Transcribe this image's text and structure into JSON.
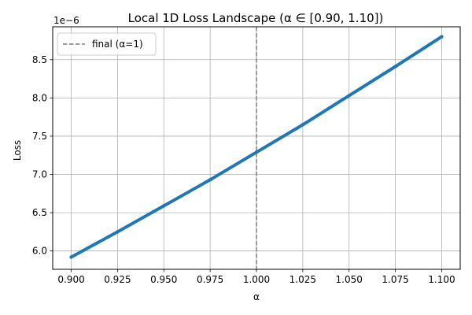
{
  "chart_data": {
    "type": "line",
    "title": "Local 1D Loss Landscape (α ∈ [0.90, 1.10])",
    "xlabel": "α",
    "ylabel": "Loss",
    "offset_label": "1e−6",
    "xlim": [
      0.89,
      1.11
    ],
    "ylim": [
      5.76,
      8.93
    ],
    "x_ticks": [
      0.9,
      0.925,
      0.95,
      0.975,
      1.0,
      1.025,
      1.05,
      1.075,
      1.1
    ],
    "x_tick_labels": [
      "0.900",
      "0.925",
      "0.950",
      "0.975",
      "1.000",
      "1.025",
      "1.050",
      "1.075",
      "1.100"
    ],
    "y_ticks": [
      6.0,
      6.5,
      7.0,
      7.5,
      8.0,
      8.5
    ],
    "y_tick_labels": [
      "6.0",
      "6.5",
      "7.0",
      "7.5",
      "8.0",
      "8.5"
    ],
    "grid": true,
    "legend_position": "top-left",
    "series": [
      {
        "color": "#1f77b4",
        "x": [
          0.9,
          0.925,
          0.95,
          0.975,
          1.0,
          1.025,
          1.05,
          1.075,
          1.1
        ],
        "y": [
          5.92,
          6.25,
          6.59,
          6.93,
          7.29,
          7.65,
          8.03,
          8.41,
          8.8
        ]
      }
    ],
    "vline": {
      "x": 1.0,
      "label": "final (α=1)",
      "color": "#808080",
      "style": "dashed"
    }
  }
}
